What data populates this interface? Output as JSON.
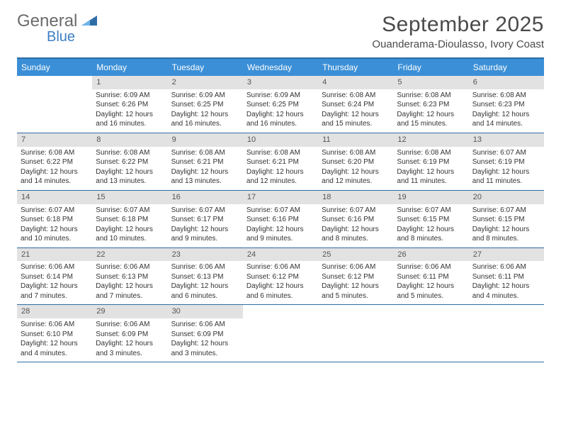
{
  "logo": {
    "word1": "General",
    "word2": "Blue"
  },
  "title": "September 2025",
  "location": "Ouanderama-Dioulasso, Ivory Coast",
  "colors": {
    "header_bg": "#3b8fd6",
    "header_text": "#ffffff",
    "rule": "#2e6da4",
    "daynum_bg": "#e2e2e2",
    "text": "#333333",
    "logo_gray": "#6b6b6b",
    "logo_blue": "#3b7fc4"
  },
  "fonts": {
    "body_pt": 10,
    "title_pt": 30,
    "location_pt": 15,
    "dayheader_pt": 12
  },
  "day_names": [
    "Sunday",
    "Monday",
    "Tuesday",
    "Wednesday",
    "Thursday",
    "Friday",
    "Saturday"
  ],
  "weeks": [
    [
      null,
      {
        "n": "1",
        "sr": "Sunrise: 6:09 AM",
        "ss": "Sunset: 6:26 PM",
        "dl": "Daylight: 12 hours and 16 minutes."
      },
      {
        "n": "2",
        "sr": "Sunrise: 6:09 AM",
        "ss": "Sunset: 6:25 PM",
        "dl": "Daylight: 12 hours and 16 minutes."
      },
      {
        "n": "3",
        "sr": "Sunrise: 6:09 AM",
        "ss": "Sunset: 6:25 PM",
        "dl": "Daylight: 12 hours and 16 minutes."
      },
      {
        "n": "4",
        "sr": "Sunrise: 6:08 AM",
        "ss": "Sunset: 6:24 PM",
        "dl": "Daylight: 12 hours and 15 minutes."
      },
      {
        "n": "5",
        "sr": "Sunrise: 6:08 AM",
        "ss": "Sunset: 6:23 PM",
        "dl": "Daylight: 12 hours and 15 minutes."
      },
      {
        "n": "6",
        "sr": "Sunrise: 6:08 AM",
        "ss": "Sunset: 6:23 PM",
        "dl": "Daylight: 12 hours and 14 minutes."
      }
    ],
    [
      {
        "n": "7",
        "sr": "Sunrise: 6:08 AM",
        "ss": "Sunset: 6:22 PM",
        "dl": "Daylight: 12 hours and 14 minutes."
      },
      {
        "n": "8",
        "sr": "Sunrise: 6:08 AM",
        "ss": "Sunset: 6:22 PM",
        "dl": "Daylight: 12 hours and 13 minutes."
      },
      {
        "n": "9",
        "sr": "Sunrise: 6:08 AM",
        "ss": "Sunset: 6:21 PM",
        "dl": "Daylight: 12 hours and 13 minutes."
      },
      {
        "n": "10",
        "sr": "Sunrise: 6:08 AM",
        "ss": "Sunset: 6:21 PM",
        "dl": "Daylight: 12 hours and 12 minutes."
      },
      {
        "n": "11",
        "sr": "Sunrise: 6:08 AM",
        "ss": "Sunset: 6:20 PM",
        "dl": "Daylight: 12 hours and 12 minutes."
      },
      {
        "n": "12",
        "sr": "Sunrise: 6:08 AM",
        "ss": "Sunset: 6:19 PM",
        "dl": "Daylight: 12 hours and 11 minutes."
      },
      {
        "n": "13",
        "sr": "Sunrise: 6:07 AM",
        "ss": "Sunset: 6:19 PM",
        "dl": "Daylight: 12 hours and 11 minutes."
      }
    ],
    [
      {
        "n": "14",
        "sr": "Sunrise: 6:07 AM",
        "ss": "Sunset: 6:18 PM",
        "dl": "Daylight: 12 hours and 10 minutes."
      },
      {
        "n": "15",
        "sr": "Sunrise: 6:07 AM",
        "ss": "Sunset: 6:18 PM",
        "dl": "Daylight: 12 hours and 10 minutes."
      },
      {
        "n": "16",
        "sr": "Sunrise: 6:07 AM",
        "ss": "Sunset: 6:17 PM",
        "dl": "Daylight: 12 hours and 9 minutes."
      },
      {
        "n": "17",
        "sr": "Sunrise: 6:07 AM",
        "ss": "Sunset: 6:16 PM",
        "dl": "Daylight: 12 hours and 9 minutes."
      },
      {
        "n": "18",
        "sr": "Sunrise: 6:07 AM",
        "ss": "Sunset: 6:16 PM",
        "dl": "Daylight: 12 hours and 8 minutes."
      },
      {
        "n": "19",
        "sr": "Sunrise: 6:07 AM",
        "ss": "Sunset: 6:15 PM",
        "dl": "Daylight: 12 hours and 8 minutes."
      },
      {
        "n": "20",
        "sr": "Sunrise: 6:07 AM",
        "ss": "Sunset: 6:15 PM",
        "dl": "Daylight: 12 hours and 8 minutes."
      }
    ],
    [
      {
        "n": "21",
        "sr": "Sunrise: 6:06 AM",
        "ss": "Sunset: 6:14 PM",
        "dl": "Daylight: 12 hours and 7 minutes."
      },
      {
        "n": "22",
        "sr": "Sunrise: 6:06 AM",
        "ss": "Sunset: 6:13 PM",
        "dl": "Daylight: 12 hours and 7 minutes."
      },
      {
        "n": "23",
        "sr": "Sunrise: 6:06 AM",
        "ss": "Sunset: 6:13 PM",
        "dl": "Daylight: 12 hours and 6 minutes."
      },
      {
        "n": "24",
        "sr": "Sunrise: 6:06 AM",
        "ss": "Sunset: 6:12 PM",
        "dl": "Daylight: 12 hours and 6 minutes."
      },
      {
        "n": "25",
        "sr": "Sunrise: 6:06 AM",
        "ss": "Sunset: 6:12 PM",
        "dl": "Daylight: 12 hours and 5 minutes."
      },
      {
        "n": "26",
        "sr": "Sunrise: 6:06 AM",
        "ss": "Sunset: 6:11 PM",
        "dl": "Daylight: 12 hours and 5 minutes."
      },
      {
        "n": "27",
        "sr": "Sunrise: 6:06 AM",
        "ss": "Sunset: 6:11 PM",
        "dl": "Daylight: 12 hours and 4 minutes."
      }
    ],
    [
      {
        "n": "28",
        "sr": "Sunrise: 6:06 AM",
        "ss": "Sunset: 6:10 PM",
        "dl": "Daylight: 12 hours and 4 minutes."
      },
      {
        "n": "29",
        "sr": "Sunrise: 6:06 AM",
        "ss": "Sunset: 6:09 PM",
        "dl": "Daylight: 12 hours and 3 minutes."
      },
      {
        "n": "30",
        "sr": "Sunrise: 6:06 AM",
        "ss": "Sunset: 6:09 PM",
        "dl": "Daylight: 12 hours and 3 minutes."
      },
      null,
      null,
      null,
      null
    ]
  ]
}
